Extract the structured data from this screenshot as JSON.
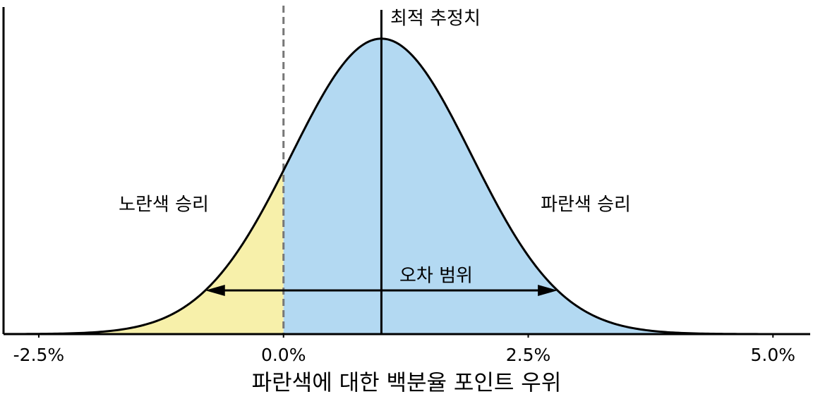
{
  "chart_data": {
    "type": "normal",
    "mean": 1.0,
    "sd": 0.92,
    "threshold": 0.0,
    "error_range": [
      -0.8,
      2.8
    ],
    "colors": {
      "left": "#f7f0aa",
      "right": "#b3d9f2"
    },
    "xlim": [
      -2.86,
      5.38
    ],
    "ylim": [
      0,
      0.48
    ],
    "xticks": [
      {
        "value": -2.5,
        "label": "-2.5%"
      },
      {
        "value": 0,
        "label": "0.0%"
      },
      {
        "value": 2.5,
        "label": "2.5%"
      },
      {
        "value": 5,
        "label": "5.0%"
      }
    ],
    "xlabel": "파란색에 대한 백분율 포인트 우위",
    "annotations": {
      "mean": "최적 추정치",
      "left": "노란색 승리",
      "right": "파란색 승리",
      "error": "오차 범위"
    }
  }
}
